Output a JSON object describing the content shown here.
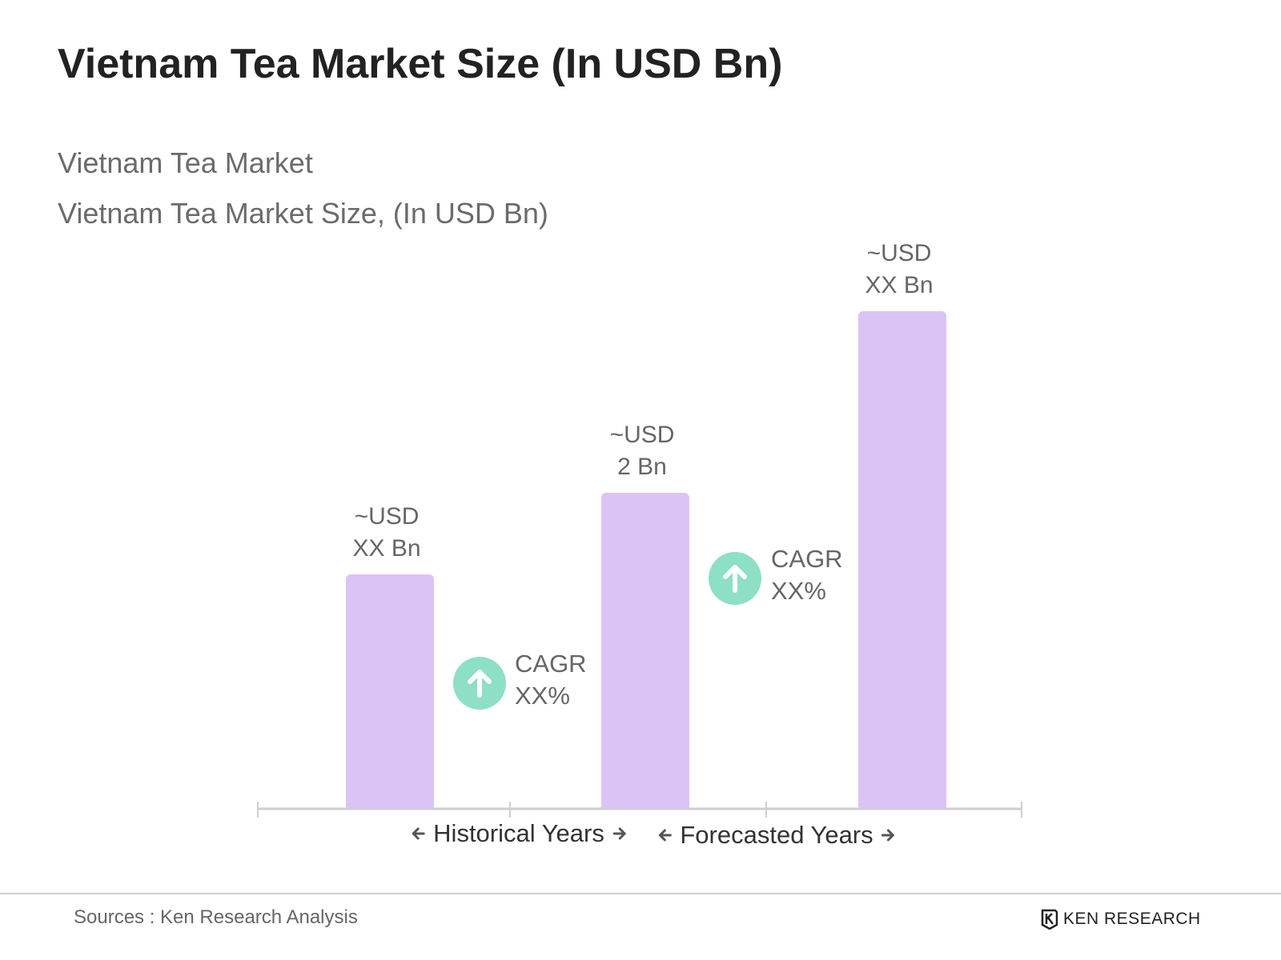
{
  "chart_data": {
    "type": "bar",
    "title": "Vietnam Tea Market Size (In USD Bn)",
    "subtitle": "Vietnam Tea Market",
    "y_label": "Vietnam Tea Market Size, (In USD Bn)",
    "categories": [
      null,
      null,
      null
    ],
    "values": [
      1.48,
      2,
      3.15
    ],
    "value_labels": [
      "~USD XX Bn",
      "~USD 2 Bn",
      "~USD XX Bn"
    ],
    "color": "#dcc3f5",
    "annotations": [
      "CAGR XX%",
      "CAGR XX%"
    ],
    "annotation_color": "#8ddfc6",
    "period_labels": [
      "Historical Years",
      "Forecasted Years"
    ]
  },
  "source": "Sources : Ken Research Analysis",
  "brand": "KEN RESEARCH"
}
